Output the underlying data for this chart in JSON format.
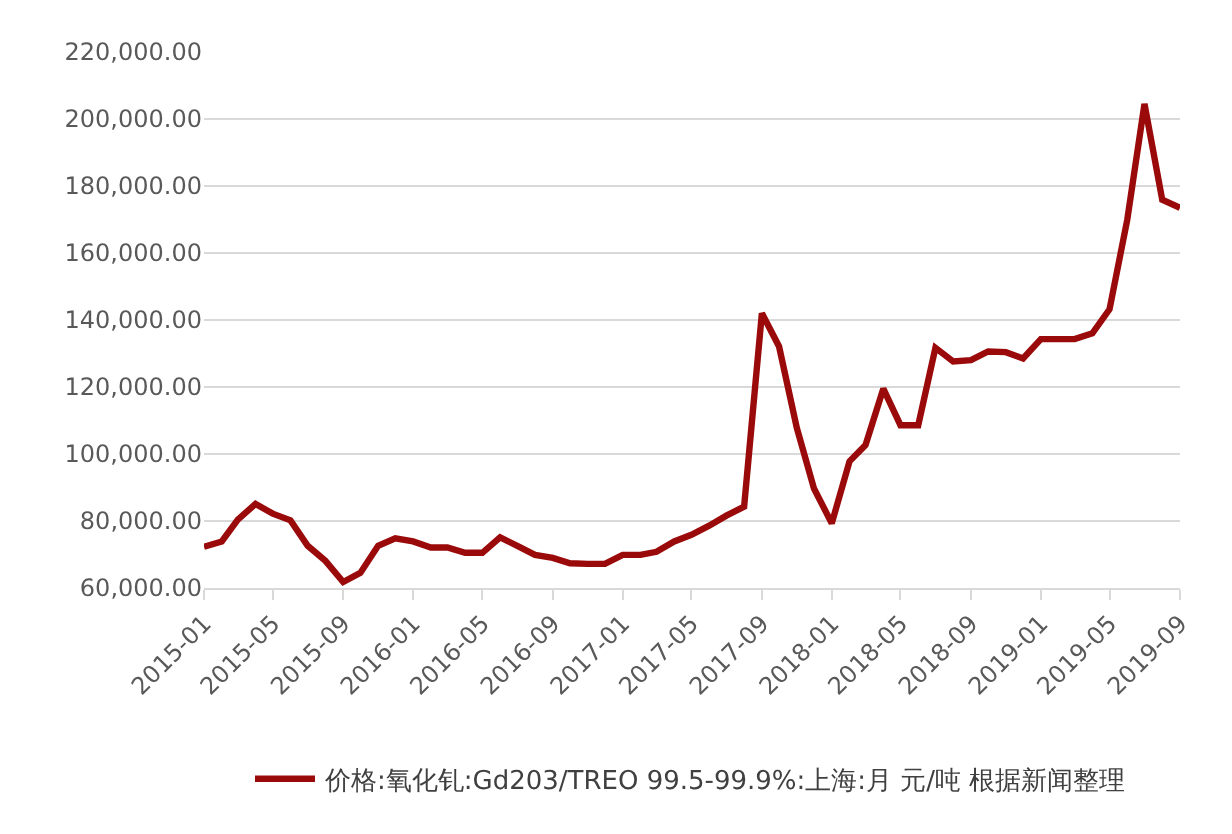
{
  "chart_data": {
    "type": "line",
    "x": [
      "2015-01",
      "2015-02",
      "2015-03",
      "2015-04",
      "2015-05",
      "2015-06",
      "2015-07",
      "2015-08",
      "2015-09",
      "2015-10",
      "2015-11",
      "2015-12",
      "2016-01",
      "2016-02",
      "2016-03",
      "2016-04",
      "2016-05",
      "2016-06",
      "2016-07",
      "2016-08",
      "2016-09",
      "2016-10",
      "2016-11",
      "2016-12",
      "2017-01",
      "2017-02",
      "2017-03",
      "2017-04",
      "2017-05",
      "2017-06",
      "2017-07",
      "2017-08",
      "2017-09",
      "2017-10",
      "2017-11",
      "2017-12",
      "2018-01",
      "2018-02",
      "2018-03",
      "2018-04",
      "2018-05",
      "2018-06",
      "2018-07",
      "2018-08",
      "2018-09",
      "2018-10",
      "2018-11",
      "2018-12",
      "2019-01",
      "2019-02",
      "2019-03",
      "2019-04",
      "2019-05",
      "2019-06",
      "2019-07",
      "2019-08",
      "2019-09"
    ],
    "series": [
      {
        "name": "价格:氧化钆:Gd203/TREO 99.5-99.9%:上海:月 元/吨 根据新闻整理",
        "color": "#9b0a0a",
        "values": [
          72300,
          73900,
          80400,
          85100,
          82200,
          80200,
          72600,
          68100,
          61800,
          64500,
          72600,
          74800,
          73900,
          72100,
          72100,
          70500,
          70500,
          75100,
          72600,
          69900,
          69000,
          67400,
          67200,
          67200,
          69900,
          69900,
          70800,
          73900,
          75900,
          78600,
          81600,
          84300,
          142000,
          132100,
          107800,
          89700,
          79300,
          97800,
          102700,
          119500,
          108600,
          108600,
          131700,
          127600,
          128000,
          130600,
          130400,
          128500,
          134300,
          134300,
          134300,
          136000,
          143200,
          170000,
          204500,
          175900,
          173500
        ]
      }
    ],
    "xlim": [
      "2015-01",
      "2019-09"
    ],
    "xticks": [
      "2015-01",
      "2015-05",
      "2015-09",
      "2016-01",
      "2016-05",
      "2016-09",
      "2017-01",
      "2017-05",
      "2017-09",
      "2018-01",
      "2018-05",
      "2018-09",
      "2019-01",
      "2019-05",
      "2019-09"
    ],
    "ylim": [
      60000,
      220000
    ],
    "yticks": [
      {
        "value": 60000,
        "label": "60,000.00"
      },
      {
        "value": 80000,
        "label": "80,000.00"
      },
      {
        "value": 100000,
        "label": "100,000.00"
      },
      {
        "value": 120000,
        "label": "120,000.00"
      },
      {
        "value": 140000,
        "label": "140,000.00"
      },
      {
        "value": 160000,
        "label": "160,000.00"
      },
      {
        "value": 180000,
        "label": "180,000.00"
      },
      {
        "value": 200000,
        "label": "200,000.00"
      },
      {
        "value": 220000,
        "label": "220,000.00"
      }
    ],
    "grid": "y",
    "legend": "bottom",
    "marker": "none",
    "line_style": "solid"
  }
}
